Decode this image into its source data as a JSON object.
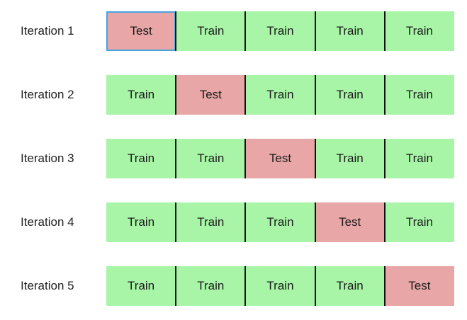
{
  "colors": {
    "train": "#a8f5a8",
    "test": "#e8a6a6",
    "divider": "#111111",
    "selection": "#4aa3e0"
  },
  "iterations": [
    {
      "label": "Iteration 1",
      "folds": [
        "Test",
        "Train",
        "Train",
        "Train",
        "Train"
      ],
      "selected_fold": 0
    },
    {
      "label": "Iteration 2",
      "folds": [
        "Train",
        "Test",
        "Train",
        "Train",
        "Train"
      ]
    },
    {
      "label": "Iteration 3",
      "folds": [
        "Train",
        "Train",
        "Test",
        "Train",
        "Train"
      ]
    },
    {
      "label": "Iteration 4",
      "folds": [
        "Train",
        "Train",
        "Train",
        "Test",
        "Train"
      ]
    },
    {
      "label": "Iteration 5",
      "folds": [
        "Train",
        "Train",
        "Train",
        "Train",
        "Test"
      ]
    }
  ]
}
